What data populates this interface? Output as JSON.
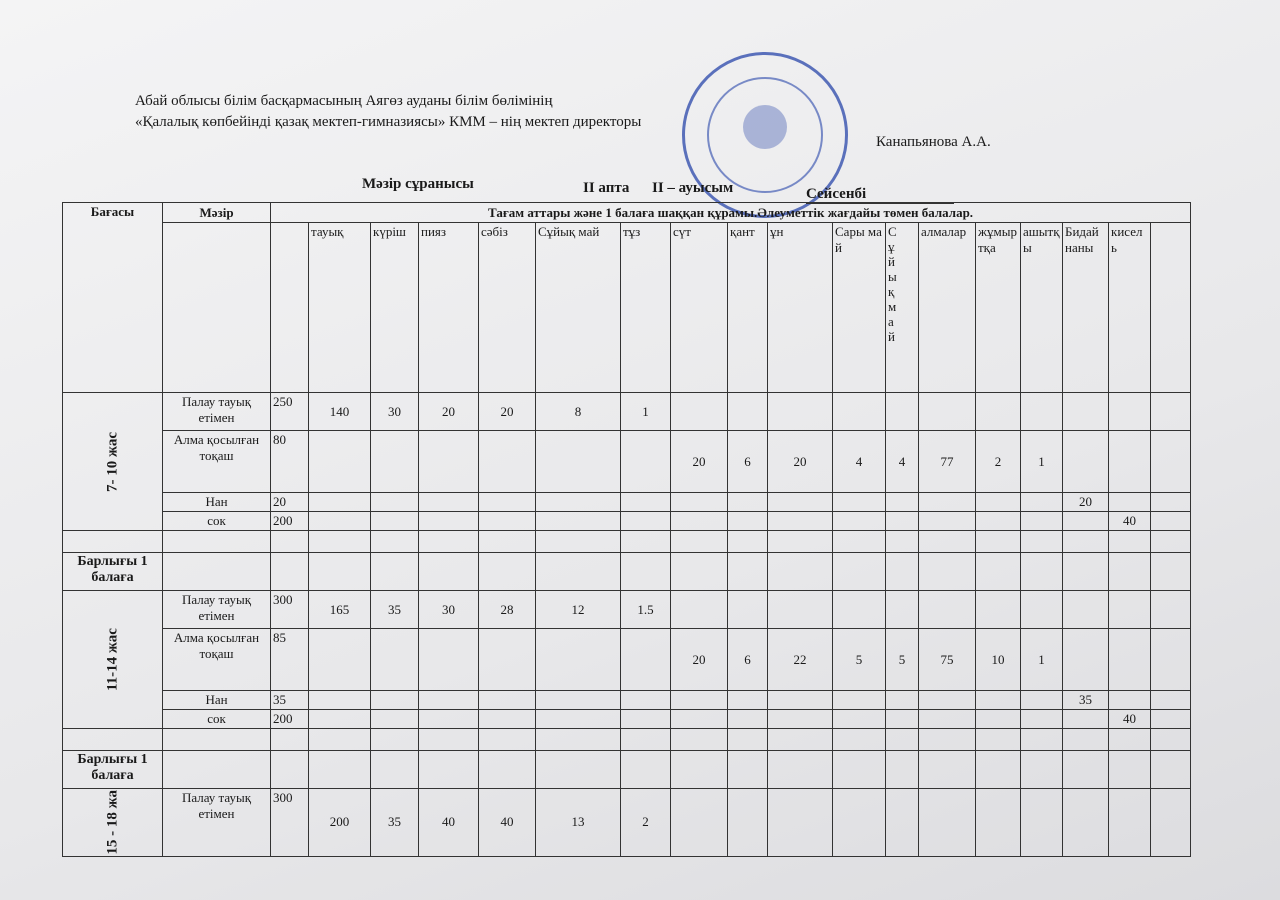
{
  "header": {
    "org_line1": "Абай облысы білім басқармасының Аягөз ауданы білім бөлімінің",
    "org_line2": "«Қалалық көпбейінді қазақ мектеп-гимназиясы» КММ – нің мектеп директоры",
    "signer": "Канапьянова А.А.",
    "menu_title": "Мәзір сұранысы",
    "week": "II апта",
    "shift": "II – ауысым",
    "day": "Сейсенбі"
  },
  "table": {
    "col_price": "Бағасы",
    "col_menu": "Мәзір",
    "col_composition": "Тағам аттары және 1  балаға шаққан құрамы.Әлеуметтік жағдайы төмен балалар.",
    "ingredients": [
      "тауық",
      "күріш",
      "пияз",
      "сәбіз",
      "Сұйық май",
      "тұз",
      "сүт",
      "қант",
      "ұн",
      "Сары май",
      "Сұйық май",
      "алмалар",
      "жұмыртқа",
      "ашытқы",
      "Бидай наны",
      "кисель"
    ],
    "groups": [
      {
        "age": "7- 10 жас",
        "total_label": "Барлығы 1 балаға",
        "dishes": [
          {
            "name": "Палау тауық етімен",
            "portion": 250,
            "amounts": [
              140,
              30,
              20,
              20,
              8,
              1,
              null,
              null,
              null,
              null,
              null,
              null,
              null,
              null,
              null,
              null
            ]
          },
          {
            "name": "Алма қосылған тоқаш",
            "portion": 80,
            "amounts": [
              null,
              null,
              null,
              null,
              null,
              null,
              20,
              6,
              20,
              4,
              4,
              77,
              2,
              1,
              null,
              null
            ]
          },
          {
            "name": "Нан",
            "portion": 20,
            "amounts": [
              null,
              null,
              null,
              null,
              null,
              null,
              null,
              null,
              null,
              null,
              null,
              null,
              null,
              null,
              20,
              null
            ]
          },
          {
            "name": "сок",
            "portion": 200,
            "amounts": [
              null,
              null,
              null,
              null,
              null,
              null,
              null,
              null,
              null,
              null,
              null,
              null,
              null,
              null,
              null,
              40
            ]
          }
        ]
      },
      {
        "age": "11-14 жас",
        "total_label": "Барлығы 1 балаға",
        "dishes": [
          {
            "name": "Палау тауық етімен",
            "portion": 300,
            "amounts": [
              165,
              35,
              30,
              28,
              12,
              1.5,
              null,
              null,
              null,
              null,
              null,
              null,
              null,
              null,
              null,
              null
            ]
          },
          {
            "name": "Алма қосылған тоқаш",
            "portion": 85,
            "amounts": [
              null,
              null,
              null,
              null,
              null,
              null,
              20,
              6,
              22,
              5,
              5,
              75,
              10,
              1,
              null,
              null
            ]
          },
          {
            "name": "Нан",
            "portion": 35,
            "amounts": [
              null,
              null,
              null,
              null,
              null,
              null,
              null,
              null,
              null,
              null,
              null,
              null,
              null,
              null,
              35,
              null
            ]
          },
          {
            "name": "сок",
            "portion": 200,
            "amounts": [
              null,
              null,
              null,
              null,
              null,
              null,
              null,
              null,
              null,
              null,
              null,
              null,
              null,
              null,
              null,
              40
            ]
          }
        ]
      },
      {
        "age": "15 - 18 жа",
        "dishes": [
          {
            "name": "Палау тауық етімен",
            "portion": 300,
            "amounts": [
              200,
              35,
              40,
              40,
              13,
              2,
              null,
              null,
              null,
              null,
              null,
              null,
              null,
              null,
              null,
              null
            ]
          }
        ]
      }
    ]
  }
}
